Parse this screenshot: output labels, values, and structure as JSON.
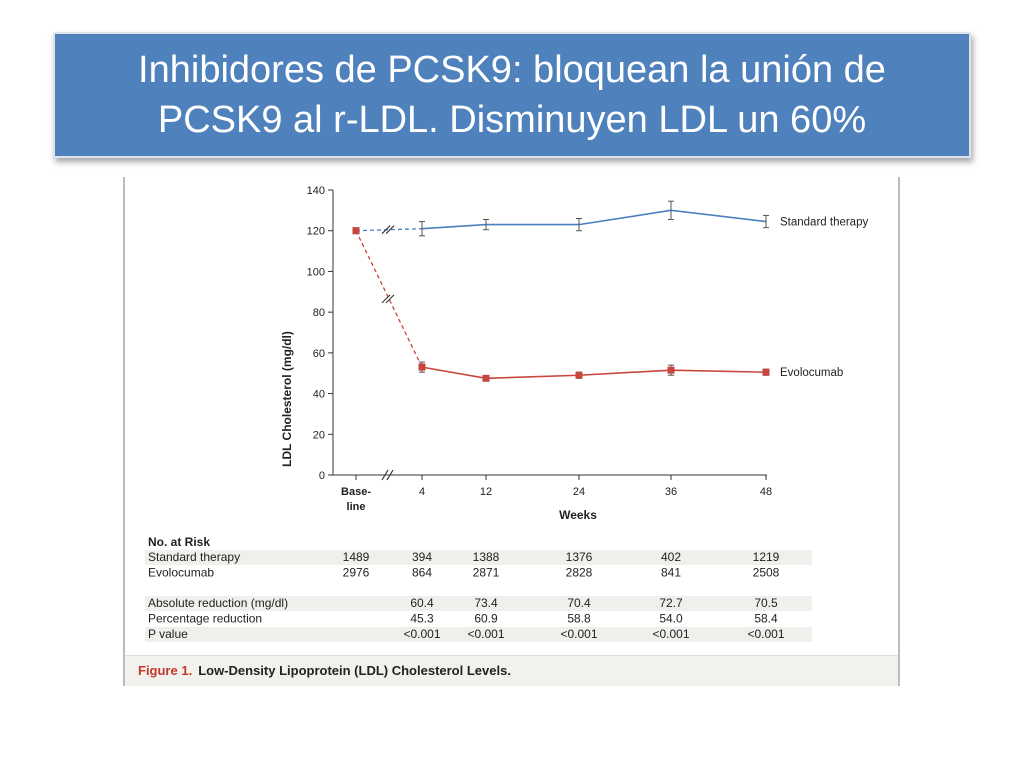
{
  "slide": {
    "title_line1": "Inhibidores de PCSK9: bloquean la unión de",
    "title_line2": "PCSK9 al r-LDL. Disminuyen LDL un 60%"
  },
  "figure": {
    "caption_label": "Figure 1.",
    "caption_text": "Low-Density Lipoprotein (LDL) Cholesterol Levels."
  },
  "chart_data": {
    "type": "line",
    "xlabel": "Weeks",
    "ylabel": "LDL Cholesterol (mg/dl)",
    "ylim": [
      0,
      140
    ],
    "yticks": [
      0,
      20,
      40,
      60,
      80,
      100,
      120,
      140
    ],
    "x_categories": [
      "Base-line",
      "4",
      "12",
      "24",
      "36",
      "48"
    ],
    "x_categories_line1": [
      "Base-",
      "4",
      "12",
      "24",
      "36",
      "48"
    ],
    "x_categories_line2": [
      "line",
      "",
      "",
      "",
      "",
      ""
    ],
    "grid": false,
    "axis_break": true,
    "series": [
      {
        "name": "Standard therapy",
        "color": "#4a7fc1",
        "values": [
          120,
          121,
          123,
          123,
          130,
          124.5
        ],
        "error": [
          0,
          3.5,
          2.5,
          3,
          4.5,
          3
        ]
      },
      {
        "name": "Evolocumab",
        "color": "#c8463c",
        "values": [
          120,
          53,
          47.5,
          49,
          51.5,
          50.5
        ],
        "error": [
          0,
          2.5,
          1,
          1.5,
          2.5,
          1.5
        ]
      }
    ]
  },
  "risk_table": {
    "heading": "No. at Risk",
    "rows": [
      {
        "label": "Standard therapy",
        "values": [
          "1489",
          "394",
          "1388",
          "1376",
          "402",
          "1219"
        ]
      },
      {
        "label": "Evolocumab",
        "values": [
          "2976",
          "864",
          "2871",
          "2828",
          "841",
          "2508"
        ]
      }
    ]
  },
  "stats_table": {
    "rows": [
      {
        "label": "Absolute reduction (mg/dl)",
        "values": [
          "",
          "60.4",
          "73.4",
          "70.4",
          "72.7",
          "70.5"
        ]
      },
      {
        "label": "Percentage reduction",
        "values": [
          "",
          "45.3",
          "60.9",
          "58.8",
          "54.0",
          "58.4"
        ]
      },
      {
        "label": "P value",
        "values": [
          "",
          "<0.001",
          "<0.001",
          "<0.001",
          "<0.001",
          "<0.001"
        ]
      }
    ]
  }
}
